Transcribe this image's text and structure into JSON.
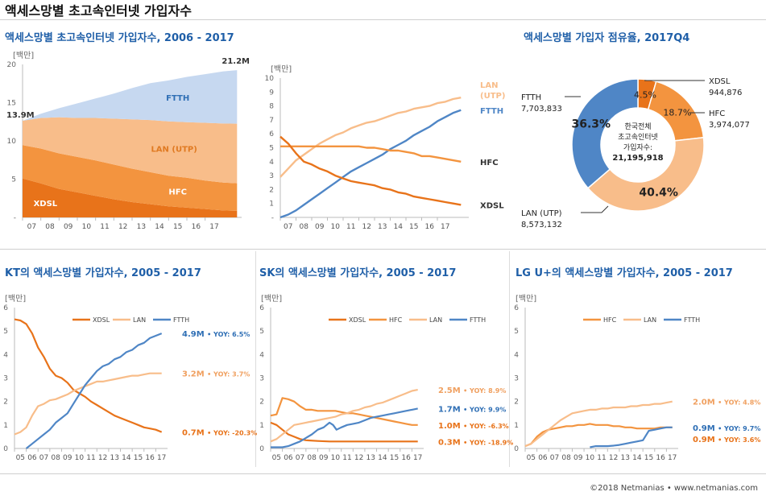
{
  "page_title": "액세스망별 초고속인터넷 가입자수",
  "footer": "©2018 Netmanias • www.netmanias.com",
  "colors": {
    "xdsl": "#e8731a",
    "hfc": "#f3943f",
    "lan": "#f8bd8a",
    "ftth": "#4f86c6",
    "ftth_area": "#c6d8f0",
    "title": "#1f5fa8",
    "axis": "#888888"
  },
  "chart_data": [
    {
      "id": "stacked",
      "type": "area",
      "title": "액세스망별 초고속인터넷 가입자수, 2006 - 2017",
      "unit_label": "[백만]",
      "y_ticks": [
        "-",
        "5",
        "10",
        "15",
        "20"
      ],
      "ylim": [
        0,
        22
      ],
      "x_tick_labels": [
        "07",
        "08",
        "09",
        "10",
        "11",
        "12",
        "13",
        "14",
        "15",
        "16",
        "17"
      ],
      "xlim": [
        2006,
        2018
      ],
      "x": [
        2006,
        2007,
        2008,
        2009,
        2010,
        2011,
        2012,
        2013,
        2014,
        2015,
        2016,
        2017,
        2017.75
      ],
      "series": [
        {
          "name": "XDSL",
          "values": [
            5.6,
            4.9,
            4.1,
            3.6,
            3.1,
            2.6,
            2.2,
            1.9,
            1.6,
            1.4,
            1.2,
            1.0,
            0.94
          ]
        },
        {
          "name": "HFC",
          "values": [
            4.8,
            5.0,
            5.1,
            5.1,
            5.1,
            5.0,
            4.8,
            4.6,
            4.4,
            4.3,
            4.1,
            4.0,
            3.97
          ]
        },
        {
          "name": "LAN (UTP)",
          "values": [
            3.5,
            4.4,
            5.2,
            5.6,
            6.1,
            6.6,
            7.1,
            7.5,
            7.8,
            8.0,
            8.3,
            8.5,
            8.57
          ]
        },
        {
          "name": "FTTH",
          "values": [
            0,
            0.6,
            1.3,
            2.1,
            2.8,
            3.6,
            4.5,
            5.3,
            5.9,
            6.5,
            7.0,
            7.5,
            7.7
          ]
        }
      ],
      "annotations": {
        "start": "13.9M",
        "end": "21.2M"
      }
    },
    {
      "id": "lines",
      "type": "line",
      "unit_label": "[백만]",
      "y_ticks": [
        "-",
        "1",
        "2",
        "3",
        "4",
        "5",
        "6",
        "7",
        "8",
        "9",
        "10"
      ],
      "ylim": [
        0,
        10
      ],
      "x_tick_labels": [
        "07",
        "08",
        "09",
        "10",
        "11",
        "12",
        "13",
        "14",
        "15",
        "16",
        "17"
      ],
      "xlim": [
        2006,
        2018
      ],
      "x": [
        2006,
        2006.5,
        2007,
        2007.5,
        2008,
        2008.5,
        2009,
        2009.5,
        2010,
        2010.5,
        2011,
        2011.5,
        2012,
        2012.5,
        2013,
        2013.5,
        2014,
        2014.5,
        2015,
        2015.5,
        2016,
        2016.5,
        2017,
        2017.5
      ],
      "series": [
        {
          "name": "LAN (UTP)",
          "values": [
            2.9,
            3.5,
            4.1,
            4.5,
            4.9,
            5.3,
            5.6,
            5.9,
            6.1,
            6.4,
            6.6,
            6.8,
            6.9,
            7.1,
            7.3,
            7.5,
            7.6,
            7.8,
            7.9,
            8.0,
            8.2,
            8.3,
            8.5,
            8.6
          ]
        },
        {
          "name": "FTTH",
          "values": [
            0.0,
            0.2,
            0.5,
            0.9,
            1.3,
            1.7,
            2.1,
            2.5,
            2.9,
            3.3,
            3.6,
            3.9,
            4.2,
            4.5,
            4.9,
            5.2,
            5.5,
            5.9,
            6.2,
            6.5,
            6.9,
            7.2,
            7.5,
            7.7
          ]
        },
        {
          "name": "HFC",
          "values": [
            5.1,
            5.1,
            5.1,
            5.1,
            5.1,
            5.1,
            5.1,
            5.1,
            5.1,
            5.1,
            5.1,
            5.0,
            5.0,
            4.9,
            4.8,
            4.8,
            4.7,
            4.6,
            4.4,
            4.4,
            4.3,
            4.2,
            4.1,
            4.0
          ]
        },
        {
          "name": "XDSL",
          "values": [
            5.8,
            5.3,
            4.6,
            4.0,
            3.8,
            3.5,
            3.3,
            3.0,
            2.8,
            2.6,
            2.5,
            2.4,
            2.3,
            2.1,
            2.0,
            1.8,
            1.7,
            1.5,
            1.4,
            1.3,
            1.2,
            1.1,
            1.0,
            0.9
          ]
        }
      ],
      "series_labels": [
        "LAN\n(UTP)",
        "FTTH",
        "HFC",
        "XDSL"
      ]
    },
    {
      "id": "share",
      "type": "pie",
      "title": "액세스망별 가입자 점유율, 2017Q4",
      "center_text": [
        "한국전체",
        "초고속인터넷",
        "가입자수:",
        "21,195,918"
      ],
      "slices": [
        {
          "name": "XDSL",
          "value": 944876,
          "pct": "4.5%"
        },
        {
          "name": "HFC",
          "value": 3974077,
          "pct": "18.7%"
        },
        {
          "name": "LAN (UTP)",
          "value": 8573132,
          "pct": "40.4%"
        },
        {
          "name": "FTTH",
          "value": 7703833,
          "pct": "36.3%"
        }
      ],
      "labels": {
        "xdsl": [
          "XDSL",
          "944,876"
        ],
        "hfc": [
          "HFC",
          "3,974,077"
        ],
        "lan": [
          "LAN (UTP)",
          "8,573,132"
        ],
        "ftth": [
          "FTTH",
          "7,703,833"
        ]
      }
    },
    {
      "id": "kt",
      "type": "line",
      "title": "KT의 액세스망별 가입자수, 2005 - 2017",
      "unit_label": "[백만]",
      "y_ticks": [
        "0",
        "1",
        "2",
        "3",
        "4",
        "5",
        "6"
      ],
      "ylim": [
        0,
        6
      ],
      "x_tick_labels": [
        "05",
        "06",
        "07",
        "08",
        "09",
        "10",
        "11",
        "12",
        "13",
        "14",
        "15",
        "16",
        "17"
      ],
      "xlim": [
        2005,
        2018
      ],
      "legend": [
        "XDSL",
        "LAN",
        "FTTH"
      ],
      "series": [
        {
          "name": "XDSL",
          "x": [
            2005,
            2005.5,
            2006,
            2006.5,
            2007,
            2007.5,
            2008,
            2008.5,
            2009,
            2009.5,
            2010,
            2010.5,
            2011,
            2011.5,
            2012,
            2012.5,
            2013,
            2013.5,
            2014,
            2014.5,
            2015,
            2015.5,
            2016,
            2016.5,
            2017,
            2017.5
          ],
          "values": [
            5.5,
            5.45,
            5.3,
            4.9,
            4.3,
            3.9,
            3.4,
            3.1,
            3.0,
            2.8,
            2.5,
            2.35,
            2.2,
            2.0,
            1.85,
            1.7,
            1.55,
            1.4,
            1.3,
            1.2,
            1.1,
            1.0,
            0.9,
            0.85,
            0.8,
            0.7
          ]
        },
        {
          "name": "LAN",
          "x": [
            2005,
            2005.5,
            2006,
            2006.5,
            2007,
            2007.5,
            2008,
            2008.5,
            2009,
            2009.5,
            2010,
            2010.5,
            2011,
            2011.5,
            2012,
            2012.5,
            2013,
            2013.5,
            2014,
            2014.5,
            2015,
            2015.5,
            2016,
            2016.5,
            2017,
            2017.5
          ],
          "values": [
            0.6,
            0.7,
            0.9,
            1.4,
            1.8,
            1.9,
            2.05,
            2.1,
            2.2,
            2.3,
            2.45,
            2.55,
            2.65,
            2.75,
            2.85,
            2.85,
            2.9,
            2.95,
            3.0,
            3.05,
            3.1,
            3.1,
            3.15,
            3.2,
            3.2,
            3.2
          ]
        },
        {
          "name": "FTTH",
          "x": [
            2006,
            2006.5,
            2007,
            2007.5,
            2008,
            2008.5,
            2009,
            2009.5,
            2010,
            2010.5,
            2011,
            2011.5,
            2012,
            2012.5,
            2013,
            2013.5,
            2014,
            2014.5,
            2015,
            2015.5,
            2016,
            2016.5,
            2017,
            2017.5
          ],
          "values": [
            0.0,
            0.2,
            0.4,
            0.6,
            0.8,
            1.1,
            1.3,
            1.5,
            1.9,
            2.3,
            2.7,
            3.0,
            3.3,
            3.5,
            3.6,
            3.8,
            3.9,
            4.1,
            4.2,
            4.4,
            4.5,
            4.7,
            4.8,
            4.9
          ]
        }
      ],
      "end_labels": [
        {
          "series": "FTTH",
          "value": "4.9M",
          "yoy": "YOY: 6.5%"
        },
        {
          "series": "LAN",
          "value": "3.2M",
          "yoy": "YOY: 3.7%"
        },
        {
          "series": "XDSL",
          "value": "0.7M",
          "yoy": "YOY: -20.3%"
        }
      ]
    },
    {
      "id": "sk",
      "type": "line",
      "title": "SK의 액세스망별 가입자수, 2005 - 2017",
      "unit_label": "[백만]",
      "y_ticks": [
        "0",
        "1",
        "2",
        "3",
        "4",
        "5",
        "6"
      ],
      "ylim": [
        0,
        6
      ],
      "x_tick_labels": [
        "05",
        "06",
        "07",
        "08",
        "09",
        "10",
        "11",
        "12",
        "13",
        "14",
        "15",
        "16",
        "17"
      ],
      "xlim": [
        2005,
        2018
      ],
      "legend": [
        "XDSL",
        "HFC",
        "LAN",
        "FTTH"
      ],
      "series": [
        {
          "name": "XDSL",
          "x": [
            2005,
            2005.5,
            2006,
            2006.5,
            2007,
            2007.5,
            2008,
            2009,
            2010,
            2011,
            2012,
            2013,
            2014,
            2015,
            2016,
            2017,
            2017.5
          ],
          "values": [
            1.1,
            1.0,
            0.8,
            0.6,
            0.5,
            0.4,
            0.35,
            0.32,
            0.3,
            0.3,
            0.3,
            0.3,
            0.3,
            0.3,
            0.3,
            0.3,
            0.3
          ]
        },
        {
          "name": "HFC",
          "x": [
            2005,
            2005.5,
            2006,
            2006.5,
            2007,
            2007.5,
            2008,
            2008.5,
            2009,
            2009.5,
            2010,
            2010.5,
            2011,
            2011.5,
            2012,
            2012.5,
            2013,
            2013.5,
            2014,
            2014.5,
            2015,
            2015.5,
            2016,
            2016.5,
            2017,
            2017.5
          ],
          "values": [
            1.4,
            1.45,
            2.15,
            2.1,
            2.0,
            1.8,
            1.65,
            1.65,
            1.6,
            1.6,
            1.6,
            1.6,
            1.55,
            1.5,
            1.5,
            1.45,
            1.4,
            1.35,
            1.3,
            1.25,
            1.2,
            1.15,
            1.1,
            1.05,
            1.0,
            1.0
          ]
        },
        {
          "name": "LAN",
          "x": [
            2005,
            2005.5,
            2006,
            2006.5,
            2007,
            2007.5,
            2008,
            2008.5,
            2009,
            2009.5,
            2010,
            2010.5,
            2011,
            2011.5,
            2012,
            2012.5,
            2013,
            2013.5,
            2014,
            2014.5,
            2015,
            2015.5,
            2016,
            2016.5,
            2017,
            2017.5
          ],
          "values": [
            0.3,
            0.4,
            0.6,
            0.8,
            1.0,
            1.05,
            1.1,
            1.15,
            1.2,
            1.25,
            1.3,
            1.35,
            1.45,
            1.5,
            1.6,
            1.65,
            1.75,
            1.8,
            1.9,
            1.95,
            2.05,
            2.15,
            2.25,
            2.35,
            2.45,
            2.5
          ]
        },
        {
          "name": "FTTH",
          "x": [
            2005,
            2005.5,
            2006,
            2006.5,
            2007,
            2007.5,
            2008,
            2008.5,
            2009,
            2009.5,
            2010,
            2010.3,
            2010.6,
            2011,
            2011.5,
            2012,
            2012.5,
            2013,
            2013.5,
            2014,
            2014.5,
            2015,
            2015.5,
            2016,
            2016.5,
            2017,
            2017.5
          ],
          "values": [
            0.05,
            0.05,
            0.05,
            0.1,
            0.2,
            0.3,
            0.45,
            0.6,
            0.8,
            0.9,
            1.1,
            1.0,
            0.8,
            0.9,
            1.0,
            1.05,
            1.1,
            1.2,
            1.3,
            1.35,
            1.4,
            1.45,
            1.5,
            1.55,
            1.6,
            1.65,
            1.7
          ]
        }
      ],
      "end_labels": [
        {
          "series": "LAN",
          "value": "2.5M",
          "yoy": "YOY: 8.9%"
        },
        {
          "series": "FTTH",
          "value": "1.7M",
          "yoy": "YOY: 9.9%"
        },
        {
          "series": "HFC",
          "value": "1.0M",
          "yoy": "YOY: -6.3%"
        },
        {
          "series": "XDSL",
          "value": "0.3M",
          "yoy": "YOY: -18.9%"
        }
      ]
    },
    {
      "id": "lgu",
      "type": "line",
      "title": "LG U+의 액세스망별 가입자수, 2005 - 2017",
      "unit_label": "[백만]",
      "y_ticks": [
        "0",
        "1",
        "2",
        "3",
        "4",
        "5",
        "6"
      ],
      "ylim": [
        0,
        6
      ],
      "x_tick_labels": [
        "05",
        "06",
        "07",
        "08",
        "09",
        "10",
        "11",
        "12",
        "13",
        "14",
        "15",
        "16",
        "17"
      ],
      "xlim": [
        2005,
        2018
      ],
      "legend": [
        "HFC",
        "LAN",
        "FTTH"
      ],
      "series": [
        {
          "name": "HFC",
          "x": [
            2005,
            2005.5,
            2006,
            2006.5,
            2007,
            2007.5,
            2008,
            2008.5,
            2009,
            2009.5,
            2010,
            2010.5,
            2011,
            2011.5,
            2012,
            2012.5,
            2013,
            2013.5,
            2014,
            2014.5,
            2015,
            2015.5,
            2016,
            2016.5,
            2017,
            2017.5
          ],
          "values": [
            0.1,
            0.2,
            0.5,
            0.7,
            0.8,
            0.85,
            0.9,
            0.95,
            0.95,
            1.0,
            1.0,
            1.05,
            1.0,
            1.0,
            1.0,
            0.95,
            0.95,
            0.9,
            0.9,
            0.85,
            0.85,
            0.85,
            0.85,
            0.9,
            0.9,
            0.9
          ]
        },
        {
          "name": "LAN",
          "x": [
            2005,
            2005.5,
            2006,
            2006.5,
            2007,
            2007.5,
            2008,
            2008.5,
            2009,
            2009.5,
            2010,
            2010.5,
            2011,
            2011.5,
            2012,
            2012.5,
            2013,
            2013.5,
            2014,
            2014.5,
            2015,
            2015.5,
            2016,
            2016.5,
            2017,
            2017.5
          ],
          "values": [
            0.1,
            0.2,
            0.4,
            0.6,
            0.8,
            1.0,
            1.2,
            1.35,
            1.5,
            1.55,
            1.6,
            1.65,
            1.65,
            1.7,
            1.7,
            1.75,
            1.75,
            1.75,
            1.8,
            1.8,
            1.85,
            1.85,
            1.9,
            1.9,
            1.95,
            2.0
          ]
        },
        {
          "name": "FTTH",
          "x": [
            2010.5,
            2011,
            2011.5,
            2012,
            2012.5,
            2013,
            2013.5,
            2014,
            2014.5,
            2015,
            2015.5,
            2016,
            2016.5,
            2017,
            2017.5
          ],
          "values": [
            0.05,
            0.1,
            0.1,
            0.1,
            0.12,
            0.15,
            0.2,
            0.25,
            0.3,
            0.35,
            0.75,
            0.8,
            0.85,
            0.9,
            0.9
          ]
        }
      ],
      "end_labels": [
        {
          "series": "LAN",
          "value": "2.0M",
          "yoy": "YOY: 4.8%"
        },
        {
          "series": "FTTH",
          "value": "0.9M",
          "yoy": "YOY: 9.7%"
        },
        {
          "series": "HFC",
          "value": "0.9M",
          "yoy": "YOY: 3.6%"
        }
      ]
    }
  ]
}
